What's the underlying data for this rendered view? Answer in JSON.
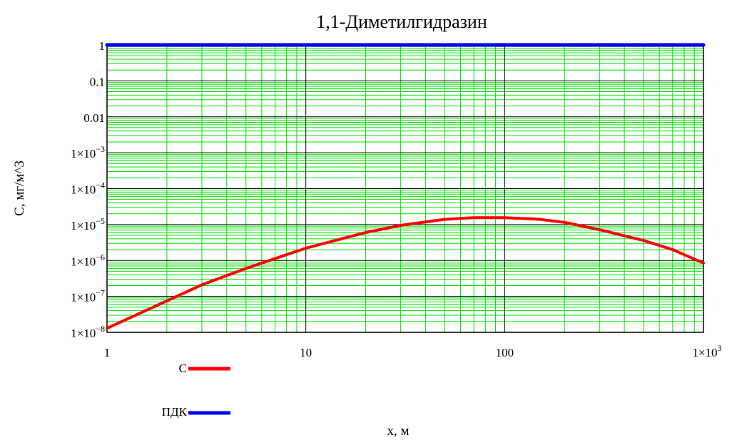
{
  "chart_data": {
    "type": "line",
    "title": "1,1-Диметилгидразин",
    "xlabel": "x, м",
    "ylabel": "C, мг/м^3",
    "xscale": "log",
    "yscale": "log",
    "xlim": [
      1,
      1000
    ],
    "ylim": [
      1e-08,
      1
    ],
    "grid": true,
    "legend_position": "bottom-left",
    "x_ticks": [
      {
        "value": 1,
        "label": "1"
      },
      {
        "value": 10,
        "label": "10"
      },
      {
        "value": 100,
        "label": "100"
      },
      {
        "value": 1000,
        "base": "1×10",
        "exp": "3"
      }
    ],
    "y_ticks": [
      {
        "value": 1,
        "label": "1"
      },
      {
        "value": 0.1,
        "label": "0.1"
      },
      {
        "value": 0.01,
        "label": "0.01"
      },
      {
        "value": 0.001,
        "base": "1×10",
        "exp": "−3"
      },
      {
        "value": 0.0001,
        "base": "1×10",
        "exp": "−4"
      },
      {
        "value": 1e-05,
        "base": "1×10",
        "exp": "−5"
      },
      {
        "value": 1e-06,
        "base": "1×10",
        "exp": "−6"
      },
      {
        "value": 1e-07,
        "base": "1×10",
        "exp": "−7"
      },
      {
        "value": 1e-08,
        "base": "1×10",
        "exp": "−8"
      }
    ],
    "series": [
      {
        "name": "C",
        "color": "#ff0000",
        "x": [
          1,
          2,
          3,
          5,
          10,
          20,
          30,
          50,
          70,
          100,
          150,
          200,
          300,
          500,
          700,
          1000
        ],
        "y": [
          1.3e-08,
          7.5e-08,
          2.1e-07,
          6e-07,
          2.2e-06,
          6e-06,
          9.5e-06,
          1.4e-05,
          1.55e-05,
          1.55e-05,
          1.4e-05,
          1.15e-05,
          7.2e-06,
          3.6e-06,
          2e-06,
          8.5e-07
        ]
      },
      {
        "name": "ПДК",
        "color": "#0000ff",
        "x": [
          1,
          1000
        ],
        "y": [
          1,
          1
        ]
      }
    ],
    "colors": {
      "minor_grid": "#00e000",
      "major_grid": "#000000",
      "frame": "#000000"
    }
  }
}
